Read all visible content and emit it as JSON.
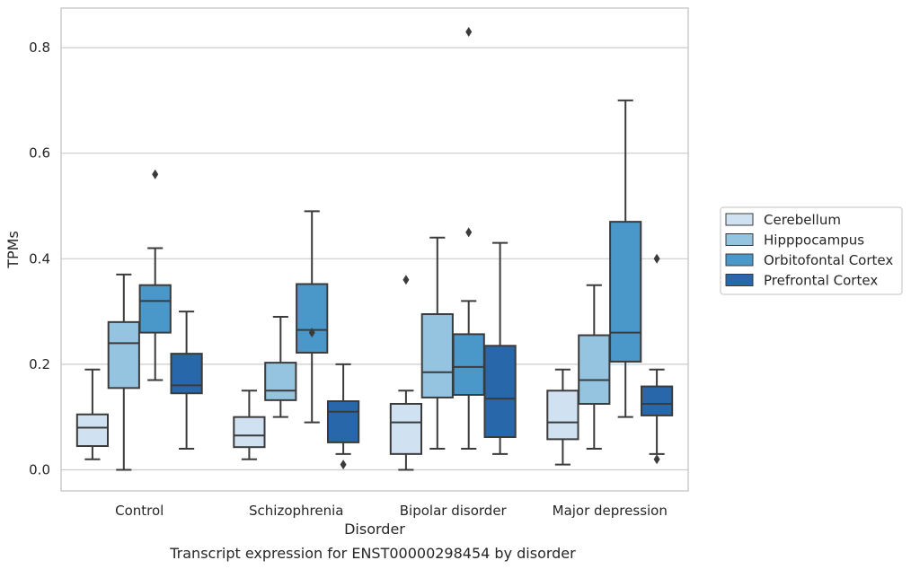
{
  "chart_data": {
    "type": "box",
    "xlabel": "Disorder",
    "ylabel": "TPMs",
    "caption": "Transcript expression for ENST00000298454 by disorder",
    "ylim": [
      -0.04,
      0.875
    ],
    "yticks": [
      "0.0",
      "0.2",
      "0.4",
      "0.6",
      "0.8"
    ],
    "ytick_values": [
      0.0,
      0.2,
      0.4,
      0.6,
      0.8
    ],
    "grid": "horizontal",
    "legend_position": "right",
    "categories": [
      "Control",
      "Schizophrenia",
      "Bipolar disorder",
      "Major depression"
    ],
    "series": [
      {
        "name": "Cerebellum",
        "color": "#d0e1f2",
        "boxes": [
          {
            "whisker_low": 0.02,
            "q1": 0.045,
            "median": 0.08,
            "q3": 0.105,
            "whisker_high": 0.19,
            "outliers": []
          },
          {
            "whisker_low": 0.02,
            "q1": 0.043,
            "median": 0.065,
            "q3": 0.1,
            "whisker_high": 0.15,
            "outliers": []
          },
          {
            "whisker_low": 0.0,
            "q1": 0.03,
            "median": 0.09,
            "q3": 0.125,
            "whisker_high": 0.15,
            "outliers": [
              0.36
            ]
          },
          {
            "whisker_low": 0.01,
            "q1": 0.058,
            "median": 0.09,
            "q3": 0.15,
            "whisker_high": 0.19,
            "outliers": []
          }
        ]
      },
      {
        "name": "Hipppocampus",
        "color": "#94c4df",
        "boxes": [
          {
            "whisker_low": 0.0,
            "q1": 0.155,
            "median": 0.24,
            "q3": 0.28,
            "whisker_high": 0.37,
            "outliers": []
          },
          {
            "whisker_low": 0.1,
            "q1": 0.132,
            "median": 0.15,
            "q3": 0.203,
            "whisker_high": 0.29,
            "outliers": []
          },
          {
            "whisker_low": 0.04,
            "q1": 0.137,
            "median": 0.185,
            "q3": 0.295,
            "whisker_high": 0.44,
            "outliers": []
          },
          {
            "whisker_low": 0.04,
            "q1": 0.125,
            "median": 0.17,
            "q3": 0.255,
            "whisker_high": 0.35,
            "outliers": []
          }
        ]
      },
      {
        "name": "Orbitofontal Cortex",
        "color": "#4a98c9",
        "boxes": [
          {
            "whisker_low": 0.17,
            "q1": 0.26,
            "median": 0.32,
            "q3": 0.35,
            "whisker_high": 0.42,
            "outliers": [
              0.56
            ]
          },
          {
            "whisker_low": 0.09,
            "q1": 0.222,
            "median": 0.265,
            "q3": 0.352,
            "whisker_high": 0.49,
            "outliers": [
              0.26
            ]
          },
          {
            "whisker_low": 0.04,
            "q1": 0.142,
            "median": 0.195,
            "q3": 0.257,
            "whisker_high": 0.32,
            "outliers": [
              0.45,
              0.83
            ]
          },
          {
            "whisker_low": 0.1,
            "q1": 0.205,
            "median": 0.26,
            "q3": 0.47,
            "whisker_high": 0.7,
            "outliers": []
          }
        ]
      },
      {
        "name": "Prefrontal Cortex",
        "color": "#2967ab",
        "boxes": [
          {
            "whisker_low": 0.04,
            "q1": 0.145,
            "median": 0.16,
            "q3": 0.22,
            "whisker_high": 0.3,
            "outliers": []
          },
          {
            "whisker_low": 0.03,
            "q1": 0.052,
            "median": 0.11,
            "q3": 0.13,
            "whisker_high": 0.2,
            "outliers": [
              0.01
            ]
          },
          {
            "whisker_low": 0.03,
            "q1": 0.062,
            "median": 0.135,
            "q3": 0.235,
            "whisker_high": 0.43,
            "outliers": []
          },
          {
            "whisker_low": 0.03,
            "q1": 0.103,
            "median": 0.125,
            "q3": 0.158,
            "whisker_high": 0.19,
            "outliers": [
              0.02,
              0.4
            ]
          }
        ]
      }
    ]
  }
}
